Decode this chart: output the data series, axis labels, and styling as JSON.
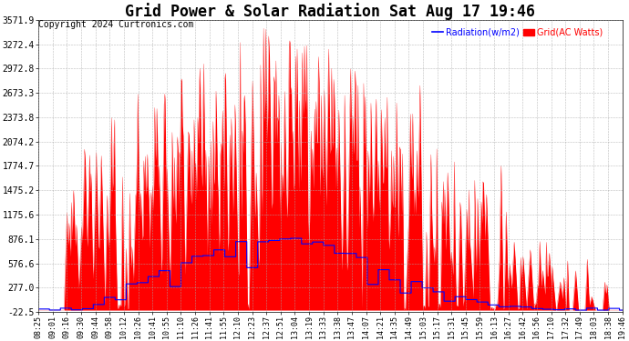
{
  "title": "Grid Power & Solar Radiation Sat Aug 17 19:46",
  "copyright": "Copyright 2024 Curtronics.com",
  "legend_radiation": "Radiation(w/m2)",
  "legend_grid": "Grid(AC Watts)",
  "radiation_color": "blue",
  "grid_color": "red",
  "background_color": "#ffffff",
  "yticks": [
    3571.9,
    3272.4,
    2972.8,
    2673.3,
    2373.8,
    2074.2,
    1774.7,
    1475.2,
    1175.6,
    876.1,
    576.6,
    277.0,
    -22.5
  ],
  "ymin": -22.5,
  "ymax": 3571.9,
  "xtick_labels": [
    "08:25",
    "09:01",
    "09:16",
    "09:30",
    "09:44",
    "09:58",
    "10:12",
    "10:26",
    "10:41",
    "10:55",
    "11:10",
    "11:26",
    "11:41",
    "11:55",
    "12:10",
    "12:23",
    "12:37",
    "12:51",
    "13:04",
    "13:19",
    "13:33",
    "13:38",
    "13:47",
    "14:07",
    "14:21",
    "14:35",
    "14:49",
    "15:03",
    "15:17",
    "15:31",
    "15:45",
    "15:59",
    "16:13",
    "16:27",
    "16:42",
    "16:56",
    "17:10",
    "17:32",
    "17:49",
    "18:03",
    "18:38",
    "19:46"
  ],
  "title_fontsize": 12,
  "copyright_fontsize": 7,
  "axis_fontsize": 6,
  "ytick_fontsize": 7
}
